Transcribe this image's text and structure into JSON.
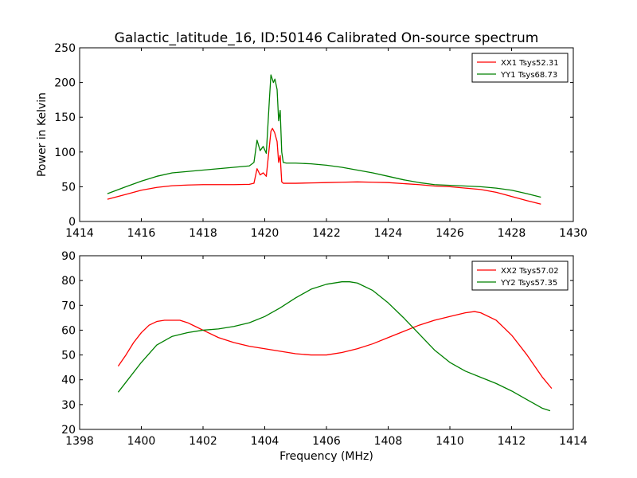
{
  "page": {
    "title": "Galactic_latitude_16, ID:50146 Calibrated On-source spectrum",
    "ylabel": "Power in Kelvin",
    "xlabel": "Frequency (MHz)"
  },
  "chart_data": [
    {
      "type": "line",
      "title": "Galactic_latitude_16, ID:50146 Calibrated On-source spectrum",
      "xlabel": "",
      "ylabel": "Power in Kelvin",
      "xlim": [
        1414,
        1430
      ],
      "ylim": [
        0,
        250
      ],
      "xticks": [
        1414,
        1416,
        1418,
        1420,
        1422,
        1424,
        1426,
        1428,
        1430
      ],
      "yticks": [
        0,
        50,
        100,
        150,
        200,
        250
      ],
      "grid": false,
      "legend_position": "top-right",
      "series": [
        {
          "name": "XX1 Tsys52.31",
          "color": "#ff0000",
          "x": [
            1414.9,
            1415.5,
            1416.0,
            1416.5,
            1417.0,
            1417.5,
            1418.0,
            1418.5,
            1419.0,
            1419.5,
            1419.65,
            1419.75,
            1419.85,
            1419.95,
            1420.05,
            1420.15,
            1420.2,
            1420.25,
            1420.32,
            1420.4,
            1420.45,
            1420.5,
            1420.55,
            1420.6,
            1420.7,
            1421.0,
            1421.5,
            1422.0,
            1422.5,
            1423.0,
            1423.5,
            1424.0,
            1424.5,
            1425.0,
            1425.5,
            1426.0,
            1426.5,
            1427.0,
            1427.5,
            1428.0,
            1428.5,
            1428.95
          ],
          "y": [
            32,
            39,
            45,
            49,
            51.5,
            52.5,
            53,
            53,
            53,
            53.5,
            55,
            76,
            67,
            70,
            65,
            108,
            130,
            134,
            128,
            115,
            85,
            95,
            57,
            55,
            55,
            55,
            55.5,
            56,
            56.5,
            57,
            56.5,
            56,
            54.5,
            53,
            51,
            50,
            48,
            46,
            42,
            36,
            30,
            25
          ]
        },
        {
          "name": "YY1 Tsys68.73",
          "color": "#008000",
          "x": [
            1414.9,
            1415.5,
            1416.0,
            1416.5,
            1417.0,
            1417.5,
            1418.0,
            1418.5,
            1419.0,
            1419.5,
            1419.65,
            1419.75,
            1419.85,
            1419.95,
            1420.05,
            1420.15,
            1420.2,
            1420.28,
            1420.33,
            1420.4,
            1420.45,
            1420.5,
            1420.55,
            1420.6,
            1420.7,
            1421.0,
            1421.5,
            1422.0,
            1422.5,
            1423.0,
            1423.5,
            1424.0,
            1424.5,
            1425.0,
            1425.5,
            1426.0,
            1426.5,
            1427.0,
            1427.5,
            1428.0,
            1428.5,
            1428.95
          ],
          "y": [
            40,
            50,
            58,
            65,
            70,
            72,
            74,
            76,
            78,
            80,
            85,
            117,
            102,
            108,
            98,
            175,
            211,
            200,
            205,
            190,
            145,
            160,
            100,
            85,
            84,
            84,
            83,
            81,
            78,
            74,
            70,
            65,
            60,
            56,
            53,
            52,
            51,
            50,
            48,
            45,
            40,
            35
          ]
        }
      ]
    },
    {
      "type": "line",
      "title": "",
      "xlabel": "Frequency (MHz)",
      "ylabel": "",
      "xlim": [
        1398,
        1414
      ],
      "ylim": [
        20,
        90
      ],
      "xticks": [
        1398,
        1400,
        1402,
        1404,
        1406,
        1408,
        1410,
        1412,
        1414
      ],
      "yticks": [
        20,
        30,
        40,
        50,
        60,
        70,
        80,
        90
      ],
      "grid": false,
      "legend_position": "top-right",
      "series": [
        {
          "name": "XX2 Tsys57.02",
          "color": "#ff0000",
          "x": [
            1399.25,
            1399.5,
            1399.75,
            1400.0,
            1400.25,
            1400.5,
            1400.75,
            1401.0,
            1401.25,
            1401.5,
            1401.75,
            1402.0,
            1402.5,
            1403.0,
            1403.5,
            1404.0,
            1404.5,
            1405.0,
            1405.5,
            1406.0,
            1406.5,
            1407.0,
            1407.5,
            1408.0,
            1408.5,
            1409.0,
            1409.5,
            1410.0,
            1410.5,
            1410.8,
            1411.0,
            1411.5,
            1412.0,
            1412.5,
            1413.0,
            1413.3
          ],
          "y": [
            45.5,
            50,
            55,
            59,
            62,
            63.5,
            64,
            64,
            64,
            63,
            61.5,
            60,
            57,
            55,
            53.5,
            52.5,
            51.5,
            50.5,
            50,
            50,
            51,
            52.5,
            54.5,
            57,
            59.5,
            62,
            64,
            65.5,
            67,
            67.5,
            67,
            64,
            58,
            50,
            41,
            36.5
          ]
        },
        {
          "name": "YY2 Tsys57.35",
          "color": "#008000",
          "x": [
            1399.25,
            1399.5,
            1400.0,
            1400.5,
            1401.0,
            1401.5,
            1402.0,
            1402.5,
            1403.0,
            1403.5,
            1404.0,
            1404.5,
            1405.0,
            1405.5,
            1406.0,
            1406.5,
            1406.75,
            1407.0,
            1407.5,
            1408.0,
            1408.5,
            1409.0,
            1409.5,
            1410.0,
            1410.5,
            1411.0,
            1411.5,
            1412.0,
            1412.5,
            1413.0,
            1413.25
          ],
          "y": [
            35,
            39,
            47,
            54,
            57.5,
            59,
            60,
            60.5,
            61.5,
            63,
            65.5,
            69,
            73,
            76.5,
            78.5,
            79.5,
            79.5,
            79,
            76,
            71,
            65,
            58.5,
            52,
            47,
            43.5,
            41,
            38.5,
            35.5,
            32,
            28.5,
            27.5
          ]
        }
      ]
    }
  ]
}
